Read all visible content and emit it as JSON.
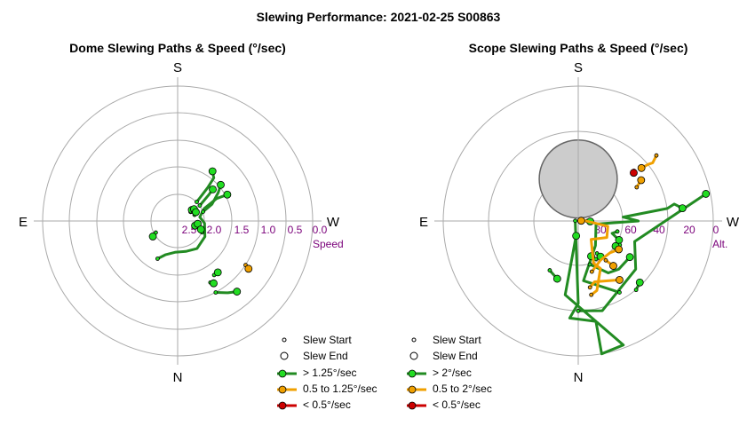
{
  "title": "Slewing Performance: 2021-02-25 S00863",
  "colors": {
    "ring": "#aaaaaa",
    "tick_label": "#7a007a",
    "fast": "#228B22",
    "fast_marker": "#22dd22",
    "medium": "#f0a000",
    "slow": "#cc0000",
    "obscured": "#cccccc"
  },
  "chart_data": [
    {
      "type": "scatter",
      "subtype": "polar-paths",
      "title": "Dome Slewing Paths & Speed (°/sec)",
      "directions": {
        "top": "S",
        "bottom": "N",
        "left": "E",
        "right": "W"
      },
      "radial_axis": {
        "label": "Speed",
        "ticks": [
          "2.5",
          "2.0",
          "1.5",
          "1.0",
          "0.5",
          "0.0"
        ],
        "range": [
          0,
          3.0
        ],
        "reversed": true
      },
      "legend": {
        "start": "Slew Start",
        "end": "Slew End",
        "fast": "> 1.25°/sec",
        "medium": "0.5 to 1.25°/sec",
        "slow": "< 0.5°/sec"
      },
      "paths": [
        {
          "speed_class": "fast",
          "points": [
            [
              152,
              2.05
            ],
            [
              160,
              2.2
            ],
            [
              175,
              2.3
            ],
            [
              195,
              2.3
            ],
            [
              215,
              2.25
            ],
            [
              240,
              2.3
            ],
            [
              265,
              2.4
            ],
            [
              280,
              2.5
            ],
            [
              295,
              2.35
            ],
            [
              300,
              2.0
            ],
            [
              298,
              1.75
            ]
          ]
        },
        {
          "speed_class": "fast",
          "points": [
            [
              315,
              2.4
            ],
            [
              318,
              2.0
            ],
            [
              320,
              1.75
            ],
            [
              325,
              1.65
            ]
          ]
        },
        {
          "speed_class": "fast",
          "points": [
            [
              290,
              2.4
            ],
            [
              296,
              2.15
            ],
            [
              305,
              1.9
            ],
            [
              310,
              1.75
            ]
          ]
        },
        {
          "speed_class": "fast",
          "points": [
            [
              305,
              2.4
            ],
            [
              310,
              2.1
            ],
            [
              312,
              1.95
            ]
          ]
        },
        {
          "speed_class": "fast",
          "points": [
            [
              250,
              2.6
            ],
            [
              255,
              2.6
            ]
          ]
        },
        {
          "speed_class": "fast",
          "points": [
            [
              255,
              2.5
            ],
            [
              262,
              2.55
            ]
          ]
        },
        {
          "speed_class": "fast",
          "points": [
            [
              245,
              2.4
            ],
            [
              250,
              2.45
            ]
          ]
        },
        {
          "speed_class": "fast",
          "points": [
            [
              305,
              2.65
            ],
            [
              308,
              2.6
            ]
          ]
        },
        {
          "speed_class": "fast",
          "points": [
            [
              302,
              2.6
            ],
            [
              306,
              2.55
            ]
          ]
        },
        {
          "speed_class": "fast",
          "points": [
            [
              290,
              2.6
            ],
            [
              296,
              2.55
            ]
          ]
        },
        {
          "speed_class": "fast",
          "points": [
            [
              208,
              1.45
            ],
            [
              210,
              1.4
            ]
          ]
        },
        {
          "speed_class": "fast",
          "points": [
            [
              214,
              1.55
            ],
            [
              218,
              1.55
            ]
          ]
        },
        {
          "speed_class": "fast",
          "points": [
            [
              208,
              1.2
            ],
            [
              215,
              1.05
            ],
            [
              220,
              0.95
            ]
          ]
        },
        {
          "speed_class": "fast",
          "points": [
            [
              118,
              2.45
            ],
            [
              122,
              2.35
            ]
          ]
        },
        {
          "speed_class": "medium",
          "points": [
            [
              237,
              1.2
            ],
            [
              236,
              1.1
            ]
          ]
        }
      ]
    },
    {
      "type": "scatter",
      "subtype": "polar-paths",
      "title": "Scope Slewing Paths & Speed (°/sec)",
      "directions": {
        "top": "S",
        "bottom": "N",
        "left": "E",
        "right": "W"
      },
      "radial_axis": {
        "label": "Alt.",
        "ticks": [
          "80",
          "60",
          "40",
          "20",
          "0"
        ],
        "range": [
          0,
          90
        ],
        "reversed": true
      },
      "obscured_region": {
        "azimuth": 0,
        "altitude": 62,
        "radius_deg": 26
      },
      "legend": {
        "start": "Slew Start",
        "end": "Slew End",
        "fast": "> 2°/sec",
        "medium": "0.5 to 2°/sec",
        "slow": "< 0.5°/sec"
      },
      "paths": [
        {
          "speed_class": "fast",
          "points": [
            [
              87,
              88
            ],
            [
              180,
              35
            ],
            [
              175,
              25
            ],
            [
              190,
              22
            ],
            [
              190,
              2
            ],
            [
              190,
              0
            ],
            [
              200,
              2
            ],
            [
              170,
              40
            ],
            [
              172,
              80
            ]
          ]
        },
        {
          "speed_class": "fast",
          "points": [
            [
              180,
              30
            ],
            [
              195,
              28
            ],
            [
              230,
              40
            ],
            [
              250,
              50
            ],
            [
              282,
              3
            ]
          ]
        },
        {
          "speed_class": "fast",
          "points": [
            [
              210,
              35
            ],
            [
              185,
              50
            ],
            [
              215,
              70
            ],
            [
              260,
              78
            ],
            [
              270,
              50
            ],
            [
              275,
              60
            ],
            [
              278,
              30
            ],
            [
              280,
              25
            ],
            [
              277,
              20
            ]
          ]
        },
        {
          "speed_class": "fast",
          "points": [
            [
              195,
              60
            ],
            [
              210,
              50
            ],
            [
              220,
              48
            ],
            [
              235,
              48
            ]
          ]
        },
        {
          "speed_class": "fast",
          "points": [
            [
              150,
              52
            ],
            [
              160,
              49
            ]
          ]
        },
        {
          "speed_class": "fast",
          "points": [
            [
              255,
              63
            ],
            [
              250,
              66
            ],
            [
              245,
              60
            ]
          ]
        },
        {
          "speed_class": "fast",
          "points": [
            [
              205,
              62
            ],
            [
              200,
              65
            ]
          ]
        },
        {
          "speed_class": "fast",
          "points": [
            [
              210,
              65
            ],
            [
              212,
              62
            ]
          ]
        },
        {
          "speed_class": "fast",
          "points": [
            [
              240,
              58
            ],
            [
              236,
              60
            ]
          ]
        },
        {
          "speed_class": "fast",
          "points": [
            [
              220,
              30
            ],
            [
              225,
              32
            ]
          ]
        },
        {
          "speed_class": "fast",
          "points": [
            [
              270,
              84
            ],
            [
              268,
              82
            ]
          ]
        },
        {
          "speed_class": "medium",
          "points": [
            [
              190,
              40
            ],
            [
              195,
              42
            ],
            [
              205,
              55
            ],
            [
              200,
              60
            ],
            [
              215,
              75
            ],
            [
              240,
              68
            ],
            [
              260,
              70
            ],
            [
              275,
              86
            ],
            [
              275,
              88
            ]
          ]
        },
        {
          "speed_class": "medium",
          "points": [
            [
              195,
              55
            ],
            [
              210,
              60
            ],
            [
              225,
              60
            ],
            [
              235,
              57
            ]
          ]
        },
        {
          "speed_class": "medium",
          "points": [
            [
              190,
              45
            ],
            [
              195,
              48
            ],
            [
              215,
              42
            ]
          ]
        },
        {
          "speed_class": "medium",
          "points": [
            [
              215,
              58
            ],
            [
              218,
              52
            ]
          ]
        },
        {
          "speed_class": "medium",
          "points": [
            [
              310,
              22
            ],
            [
              308,
              27
            ],
            [
              309,
              30
            ],
            [
              310,
              35
            ]
          ]
        },
        {
          "speed_class": "medium",
          "points": [
            [
              300,
              45
            ],
            [
              303,
              40
            ]
          ]
        },
        {
          "speed_class": "slow",
          "points": [
            [
              312,
              40
            ],
            [
              311,
              41
            ]
          ]
        }
      ]
    }
  ]
}
